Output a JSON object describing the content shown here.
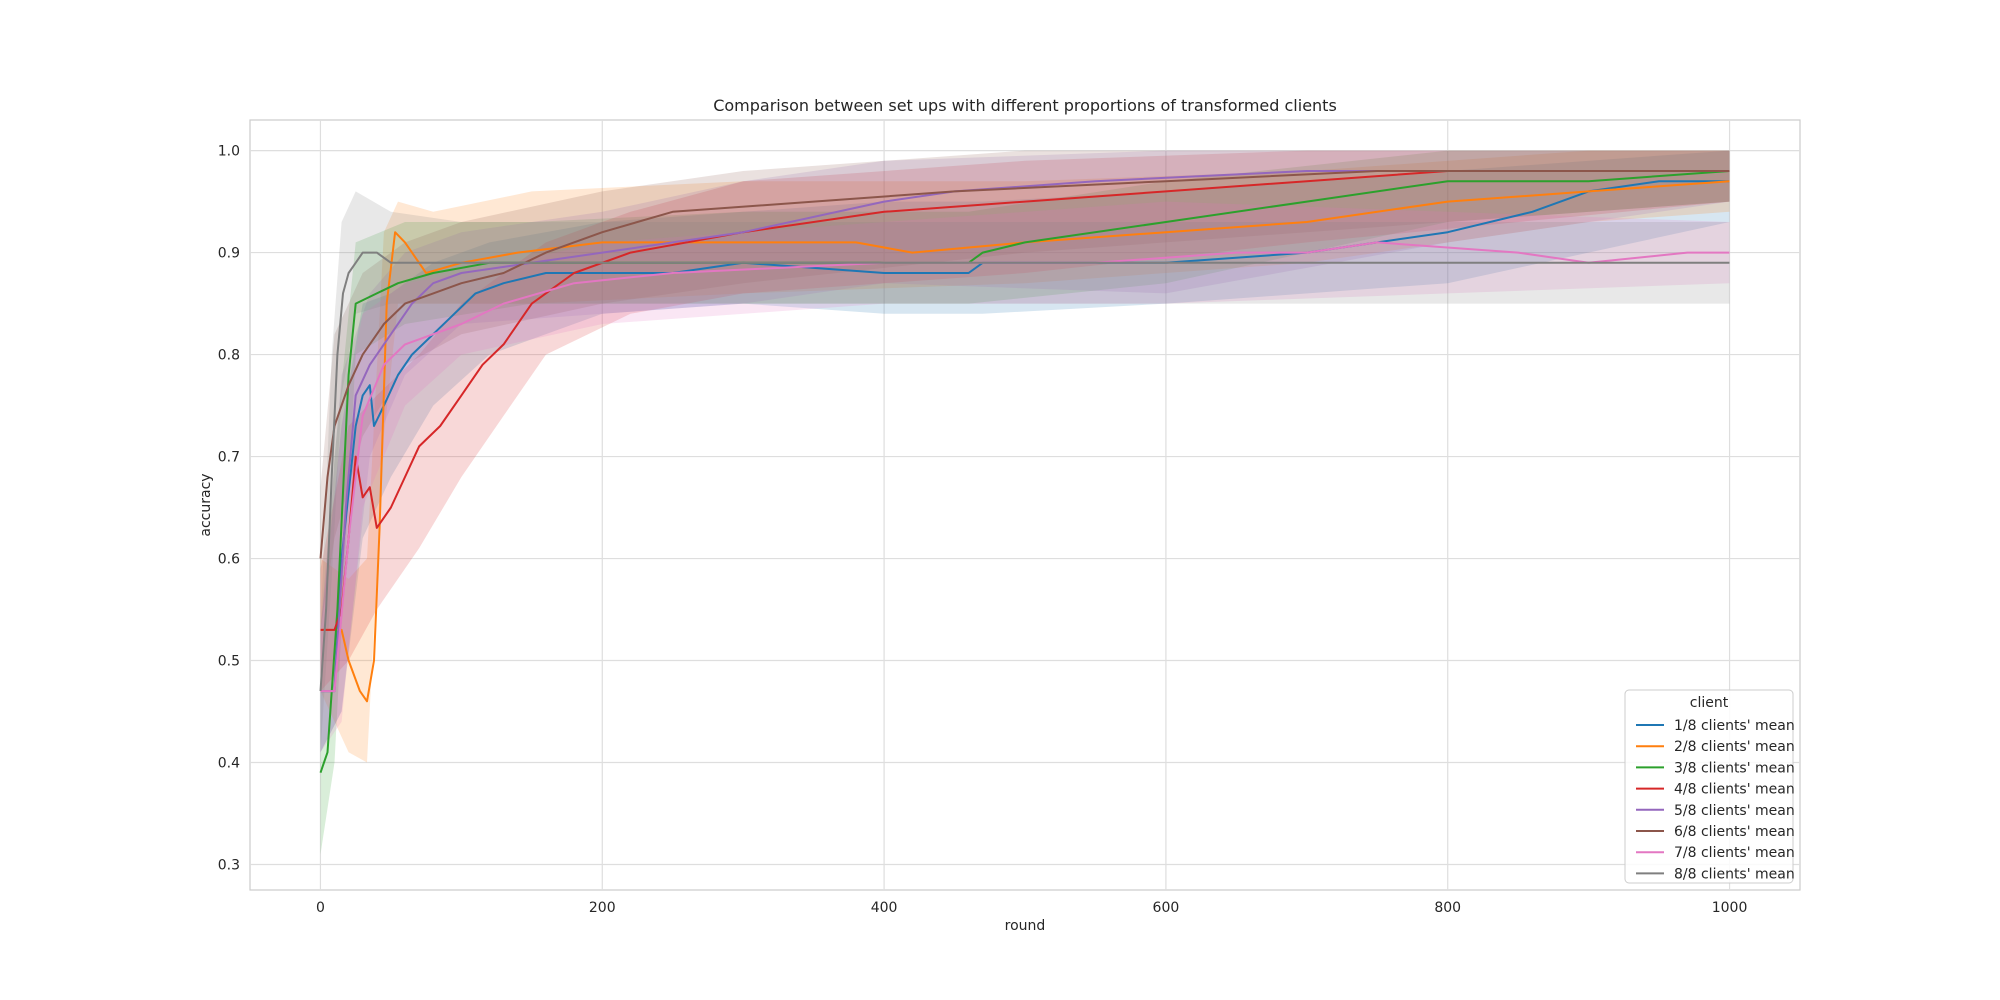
{
  "chart_data": {
    "type": "line",
    "title": "Comparison between set ups with different proportions of transformed clients",
    "xlabel": "round",
    "ylabel": "accuracy",
    "xlim": [
      -50,
      1050
    ],
    "ylim": [
      0.275,
      1.03
    ],
    "xticks": [
      0,
      200,
      400,
      600,
      800,
      1000
    ],
    "xtick_labels": [
      "0",
      "200",
      "400",
      "600",
      "800",
      "1000"
    ],
    "yticks": [
      0.3,
      0.4,
      0.5,
      0.6,
      0.7,
      0.8,
      0.9,
      1.0
    ],
    "ytick_labels": [
      "0.3",
      "0.4",
      "0.5",
      "0.6",
      "0.7",
      "0.8",
      "0.9",
      "1.0"
    ],
    "grid": true,
    "legend": {
      "title": "client",
      "position": "lower-right"
    },
    "series": [
      {
        "name": "1/8 clients' mean",
        "color": "#1f77b4",
        "points": [
          [
            0,
            0.47
          ],
          [
            10,
            0.47
          ],
          [
            15,
            0.6
          ],
          [
            25,
            0.73
          ],
          [
            30,
            0.76
          ],
          [
            35,
            0.77
          ],
          [
            38,
            0.73
          ],
          [
            45,
            0.75
          ],
          [
            55,
            0.78
          ],
          [
            65,
            0.8
          ],
          [
            80,
            0.82
          ],
          [
            95,
            0.84
          ],
          [
            110,
            0.86
          ],
          [
            130,
            0.87
          ],
          [
            160,
            0.88
          ],
          [
            200,
            0.88
          ],
          [
            250,
            0.88
          ],
          [
            300,
            0.89
          ],
          [
            400,
            0.88
          ],
          [
            460,
            0.88
          ],
          [
            470,
            0.89
          ],
          [
            600,
            0.89
          ],
          [
            700,
            0.9
          ],
          [
            800,
            0.92
          ],
          [
            860,
            0.94
          ],
          [
            900,
            0.96
          ],
          [
            950,
            0.97
          ],
          [
            1000,
            0.97
          ]
        ],
        "band": [
          [
            0,
            0.41,
            0.53
          ],
          [
            15,
            0.45,
            0.73
          ],
          [
            30,
            0.62,
            0.85
          ],
          [
            50,
            0.68,
            0.86
          ],
          [
            80,
            0.75,
            0.89
          ],
          [
            120,
            0.8,
            0.91
          ],
          [
            200,
            0.84,
            0.93
          ],
          [
            300,
            0.85,
            0.94
          ],
          [
            400,
            0.84,
            0.95
          ],
          [
            470,
            0.84,
            0.95
          ],
          [
            600,
            0.85,
            0.96
          ],
          [
            800,
            0.87,
            0.98
          ],
          [
            1000,
            0.93,
            1.0
          ]
        ]
      },
      {
        "name": "2/8 clients' mean",
        "color": "#ff7f0e",
        "points": [
          [
            0,
            0.53
          ],
          [
            15,
            0.53
          ],
          [
            20,
            0.5
          ],
          [
            28,
            0.47
          ],
          [
            33,
            0.46
          ],
          [
            38,
            0.5
          ],
          [
            42,
            0.63
          ],
          [
            47,
            0.85
          ],
          [
            53,
            0.92
          ],
          [
            60,
            0.91
          ],
          [
            65,
            0.9
          ],
          [
            75,
            0.88
          ],
          [
            100,
            0.89
          ],
          [
            140,
            0.9
          ],
          [
            200,
            0.91
          ],
          [
            300,
            0.91
          ],
          [
            380,
            0.91
          ],
          [
            420,
            0.9
          ],
          [
            500,
            0.91
          ],
          [
            600,
            0.92
          ],
          [
            700,
            0.93
          ],
          [
            800,
            0.95
          ],
          [
            900,
            0.96
          ],
          [
            1000,
            0.97
          ]
        ],
        "band": [
          [
            0,
            0.47,
            0.6
          ],
          [
            20,
            0.41,
            0.58
          ],
          [
            33,
            0.4,
            0.6
          ],
          [
            45,
            0.72,
            0.92
          ],
          [
            55,
            0.85,
            0.95
          ],
          [
            80,
            0.85,
            0.94
          ],
          [
            150,
            0.85,
            0.96
          ],
          [
            300,
            0.86,
            0.97
          ],
          [
            500,
            0.87,
            0.97
          ],
          [
            700,
            0.89,
            0.98
          ],
          [
            900,
            0.93,
            1.0
          ],
          [
            1000,
            0.94,
            1.0
          ]
        ]
      },
      {
        "name": "3/8 clients' mean",
        "color": "#2ca02c",
        "points": [
          [
            0,
            0.39
          ],
          [
            5,
            0.41
          ],
          [
            12,
            0.55
          ],
          [
            20,
            0.78
          ],
          [
            25,
            0.85
          ],
          [
            40,
            0.86
          ],
          [
            55,
            0.87
          ],
          [
            80,
            0.88
          ],
          [
            120,
            0.89
          ],
          [
            200,
            0.89
          ],
          [
            300,
            0.89
          ],
          [
            400,
            0.89
          ],
          [
            460,
            0.89
          ],
          [
            470,
            0.9
          ],
          [
            500,
            0.91
          ],
          [
            600,
            0.93
          ],
          [
            700,
            0.95
          ],
          [
            800,
            0.97
          ],
          [
            900,
            0.97
          ],
          [
            1000,
            0.98
          ]
        ],
        "band": [
          [
            0,
            0.31,
            0.47
          ],
          [
            10,
            0.4,
            0.7
          ],
          [
            25,
            0.8,
            0.91
          ],
          [
            60,
            0.83,
            0.93
          ],
          [
            150,
            0.85,
            0.93
          ],
          [
            300,
            0.85,
            0.94
          ],
          [
            460,
            0.85,
            0.94
          ],
          [
            600,
            0.87,
            0.97
          ],
          [
            800,
            0.93,
            1.0
          ],
          [
            1000,
            0.95,
            1.0
          ]
        ]
      },
      {
        "name": "4/8 clients' mean",
        "color": "#d62728",
        "points": [
          [
            0,
            0.53
          ],
          [
            10,
            0.53
          ],
          [
            15,
            0.55
          ],
          [
            20,
            0.62
          ],
          [
            25,
            0.7
          ],
          [
            30,
            0.66
          ],
          [
            35,
            0.67
          ],
          [
            40,
            0.63
          ],
          [
            50,
            0.65
          ],
          [
            60,
            0.68
          ],
          [
            70,
            0.71
          ],
          [
            85,
            0.73
          ],
          [
            100,
            0.76
          ],
          [
            115,
            0.79
          ],
          [
            130,
            0.81
          ],
          [
            150,
            0.85
          ],
          [
            180,
            0.88
          ],
          [
            220,
            0.9
          ],
          [
            300,
            0.92
          ],
          [
            400,
            0.94
          ],
          [
            500,
            0.95
          ],
          [
            600,
            0.96
          ],
          [
            700,
            0.97
          ],
          [
            800,
            0.98
          ],
          [
            1000,
            0.98
          ]
        ],
        "band": [
          [
            0,
            0.47,
            0.59
          ],
          [
            20,
            0.5,
            0.73
          ],
          [
            40,
            0.55,
            0.76
          ],
          [
            70,
            0.61,
            0.8
          ],
          [
            100,
            0.68,
            0.85
          ],
          [
            130,
            0.74,
            0.88
          ],
          [
            160,
            0.8,
            0.91
          ],
          [
            220,
            0.84,
            0.94
          ],
          [
            300,
            0.86,
            0.97
          ],
          [
            500,
            0.88,
            0.99
          ],
          [
            700,
            0.91,
            1.0
          ],
          [
            1000,
            0.95,
            1.0
          ]
        ]
      },
      {
        "name": "5/8 clients' mean",
        "color": "#9467bd",
        "points": [
          [
            0,
            0.47
          ],
          [
            10,
            0.47
          ],
          [
            18,
            0.65
          ],
          [
            25,
            0.76
          ],
          [
            35,
            0.79
          ],
          [
            50,
            0.82
          ],
          [
            65,
            0.85
          ],
          [
            80,
            0.87
          ],
          [
            100,
            0.88
          ],
          [
            150,
            0.89
          ],
          [
            200,
            0.9
          ],
          [
            250,
            0.91
          ],
          [
            300,
            0.92
          ],
          [
            400,
            0.95
          ],
          [
            450,
            0.96
          ],
          [
            550,
            0.97
          ],
          [
            700,
            0.98
          ],
          [
            1000,
            0.98
          ]
        ],
        "band": [
          [
            0,
            0.41,
            0.53
          ],
          [
            15,
            0.45,
            0.78
          ],
          [
            35,
            0.7,
            0.86
          ],
          [
            60,
            0.78,
            0.9
          ],
          [
            100,
            0.83,
            0.92
          ],
          [
            200,
            0.84,
            0.94
          ],
          [
            300,
            0.85,
            0.97
          ],
          [
            400,
            0.87,
            0.99
          ],
          [
            600,
            0.86,
            1.0
          ],
          [
            800,
            0.91,
            1.0
          ],
          [
            1000,
            0.95,
            1.0
          ]
        ]
      },
      {
        "name": "6/8 clients' mean",
        "color": "#8c564b",
        "points": [
          [
            0,
            0.6
          ],
          [
            5,
            0.68
          ],
          [
            10,
            0.73
          ],
          [
            20,
            0.77
          ],
          [
            30,
            0.8
          ],
          [
            45,
            0.83
          ],
          [
            60,
            0.85
          ],
          [
            80,
            0.86
          ],
          [
            100,
            0.87
          ],
          [
            130,
            0.88
          ],
          [
            160,
            0.9
          ],
          [
            200,
            0.92
          ],
          [
            250,
            0.94
          ],
          [
            350,
            0.95
          ],
          [
            450,
            0.96
          ],
          [
            600,
            0.97
          ],
          [
            750,
            0.98
          ],
          [
            1000,
            0.98
          ]
        ],
        "band": [
          [
            0,
            0.53,
            0.67
          ],
          [
            10,
            0.62,
            0.82
          ],
          [
            30,
            0.72,
            0.88
          ],
          [
            60,
            0.79,
            0.91
          ],
          [
            100,
            0.82,
            0.93
          ],
          [
            200,
            0.85,
            0.96
          ],
          [
            300,
            0.87,
            0.98
          ],
          [
            500,
            0.9,
            1.0
          ],
          [
            1000,
            0.95,
            1.0
          ]
        ]
      },
      {
        "name": "7/8 clients' mean",
        "color": "#e377c2",
        "points": [
          [
            0,
            0.47
          ],
          [
            10,
            0.47
          ],
          [
            20,
            0.62
          ],
          [
            30,
            0.74
          ],
          [
            45,
            0.79
          ],
          [
            60,
            0.81
          ],
          [
            80,
            0.82
          ],
          [
            100,
            0.83
          ],
          [
            130,
            0.85
          ],
          [
            180,
            0.87
          ],
          [
            250,
            0.88
          ],
          [
            400,
            0.89
          ],
          [
            550,
            0.89
          ],
          [
            650,
            0.9
          ],
          [
            700,
            0.9
          ],
          [
            750,
            0.91
          ],
          [
            850,
            0.9
          ],
          [
            900,
            0.89
          ],
          [
            970,
            0.9
          ],
          [
            1000,
            0.9
          ]
        ],
        "band": [
          [
            0,
            0.41,
            0.53
          ],
          [
            15,
            0.44,
            0.73
          ],
          [
            30,
            0.65,
            0.84
          ],
          [
            60,
            0.75,
            0.87
          ],
          [
            100,
            0.8,
            0.88
          ],
          [
            200,
            0.83,
            0.91
          ],
          [
            400,
            0.85,
            0.93
          ],
          [
            600,
            0.85,
            0.95
          ],
          [
            800,
            0.86,
            0.94
          ],
          [
            1000,
            0.87,
            0.93
          ]
        ]
      },
      {
        "name": "8/8 clients' mean",
        "color": "#7f7f7f",
        "points": [
          [
            0,
            0.47
          ],
          [
            4,
            0.55
          ],
          [
            8,
            0.68
          ],
          [
            12,
            0.8
          ],
          [
            16,
            0.86
          ],
          [
            20,
            0.88
          ],
          [
            25,
            0.89
          ],
          [
            30,
            0.9
          ],
          [
            40,
            0.9
          ],
          [
            50,
            0.89
          ],
          [
            70,
            0.89
          ],
          [
            120,
            0.89
          ],
          [
            200,
            0.89
          ],
          [
            400,
            0.89
          ],
          [
            600,
            0.89
          ],
          [
            800,
            0.89
          ],
          [
            1000,
            0.89
          ]
        ],
        "band": [
          [
            0,
            0.41,
            0.53
          ],
          [
            8,
            0.58,
            0.8
          ],
          [
            15,
            0.76,
            0.93
          ],
          [
            25,
            0.84,
            0.96
          ],
          [
            50,
            0.85,
            0.94
          ],
          [
            100,
            0.85,
            0.93
          ],
          [
            200,
            0.85,
            0.93
          ],
          [
            500,
            0.85,
            0.93
          ],
          [
            800,
            0.85,
            0.93
          ],
          [
            1000,
            0.85,
            0.93
          ]
        ]
      }
    ]
  }
}
